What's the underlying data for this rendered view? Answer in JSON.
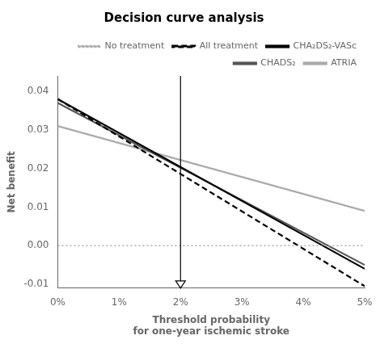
{
  "chart_data": {
    "type": "line",
    "title": "Decision curve analysis",
    "xlabel": "Threshold probability\nfor one-year ischemic stroke",
    "ylabel": "Net benefit",
    "x": [
      0.0,
      0.05
    ],
    "series": [
      {
        "name": "No treatment",
        "color": "#aaaaaa",
        "line_style": "dotted",
        "values": [
          0.0,
          0.0
        ]
      },
      {
        "name": "All treatment",
        "color": "#000000",
        "line_style": "dashed",
        "values": [
          0.038,
          -0.0105
        ]
      },
      {
        "name": "CHA₂DS₂-VASc",
        "color": "#000000",
        "line_style": "solid",
        "values": [
          0.038,
          -0.006
        ]
      },
      {
        "name": "CHADS₂",
        "color": "#555555",
        "line_style": "solid",
        "values": [
          0.037,
          -0.005
        ]
      },
      {
        "name": "ATRIA",
        "color": "#aaaaaa",
        "line_style": "solid",
        "values": [
          0.031,
          0.009
        ]
      }
    ],
    "xlim": [
      0.0,
      0.05
    ],
    "ylim": [
      -0.011,
      0.044
    ],
    "xticks": [
      {
        "value": 0.0,
        "label": "0%"
      },
      {
        "value": 0.01,
        "label": "1%"
      },
      {
        "value": 0.02,
        "label": "2%"
      },
      {
        "value": 0.03,
        "label": "3%"
      },
      {
        "value": 0.04,
        "label": "4%"
      },
      {
        "value": 0.05,
        "label": "5%"
      }
    ],
    "yticks": [
      -0.01,
      {
        "value": 0.0,
        "label": "0.00"
      },
      0.01,
      0.02,
      0.03,
      0.04
    ],
    "vlines": [
      0.02
    ],
    "grid": false,
    "legend": "upper right"
  }
}
